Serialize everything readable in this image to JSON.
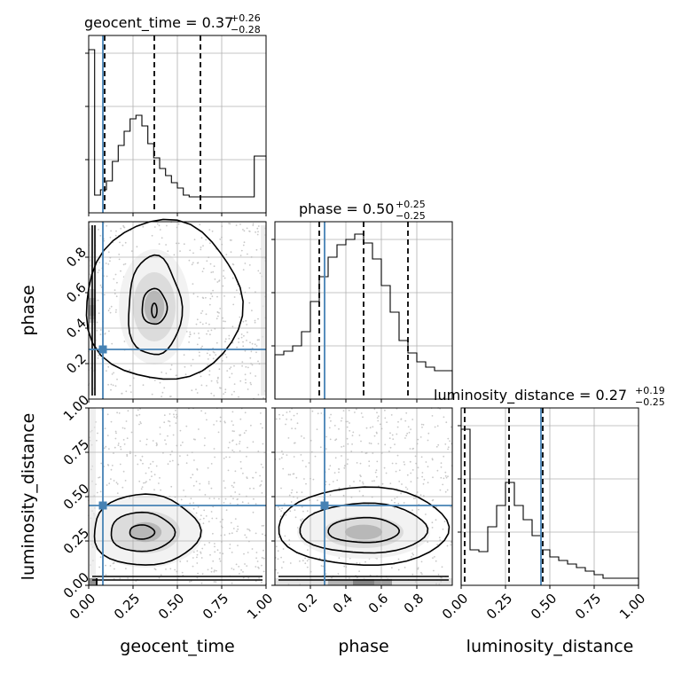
{
  "chart_data": {
    "type": "corner",
    "grid": true,
    "parameters": [
      "geocent_time",
      "phase",
      "luminosity_distance"
    ],
    "titles": [
      {
        "param": "geocent_time",
        "label": "geocent_time = 0.37",
        "plus": "+0.26",
        "minus": "−0.28"
      },
      {
        "param": "phase",
        "label": "phase = 0.50",
        "plus": "+0.25",
        "minus": "−0.25"
      },
      {
        "param": "luminosity_distance",
        "label": "luminosity_distance = 0.27",
        "plus": "+0.19",
        "minus": "−0.25"
      }
    ],
    "axis_labels": {
      "x": [
        "geocent_time",
        "phase",
        "luminosity_distance"
      ],
      "y": [
        "phase",
        "luminosity_distance"
      ]
    },
    "ranges": {
      "geocent_time": [
        0,
        1
      ],
      "phase": [
        0,
        1
      ],
      "luminosity_distance": [
        0,
        1
      ]
    },
    "ticks": {
      "geocent_time": [
        "0.00",
        "0.25",
        "0.50",
        "0.75",
        "1.00"
      ],
      "phase": [
        "0.2",
        "0.4",
        "0.6",
        "0.8"
      ],
      "luminosity_distance": [
        "0.00",
        "0.25",
        "0.50",
        "0.75",
        "1.00"
      ]
    },
    "truths": {
      "geocent_time": 0.08,
      "phase": 0.28,
      "luminosity_distance": 0.45
    },
    "quantiles": {
      "geocent_time": [
        0.09,
        0.37,
        0.63
      ],
      "phase": [
        0.25,
        0.5,
        0.75
      ],
      "luminosity_distance": [
        0.02,
        0.27,
        0.46
      ]
    },
    "histograms": {
      "geocent_time": [
        0.92,
        0.1,
        0.13,
        0.18,
        0.29,
        0.38,
        0.46,
        0.53,
        0.55,
        0.49,
        0.39,
        0.31,
        0.25,
        0.21,
        0.17,
        0.14,
        0.1,
        0.09,
        0.09,
        0.09,
        0.09,
        0.09,
        0.09,
        0.09,
        0.09,
        0.09,
        0.09,
        0.09,
        0.32,
        0.32
      ],
      "phase": [
        0.25,
        0.27,
        0.3,
        0.38,
        0.55,
        0.69,
        0.8,
        0.87,
        0.9,
        0.93,
        0.88,
        0.79,
        0.64,
        0.49,
        0.33,
        0.26,
        0.21,
        0.18,
        0.16,
        0.16
      ],
      "luminosity_distance": [
        0.88,
        0.2,
        0.19,
        0.33,
        0.45,
        0.58,
        0.45,
        0.37,
        0.28,
        0.2,
        0.16,
        0.14,
        0.12,
        0.1,
        0.08,
        0.06,
        0.04,
        0.04,
        0.04,
        0.04
      ]
    }
  }
}
